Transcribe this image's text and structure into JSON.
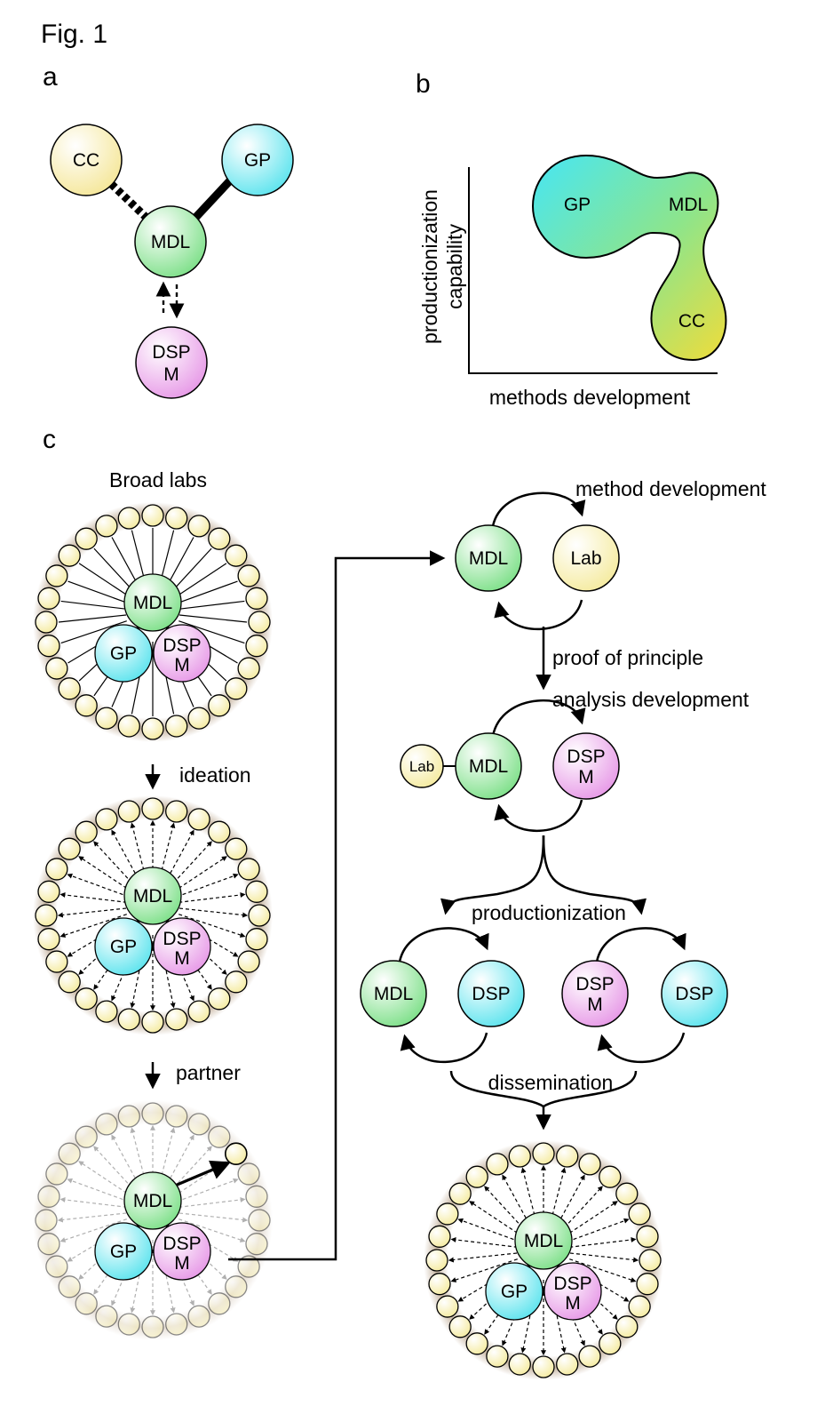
{
  "figure": {
    "title": "Fig. 1"
  },
  "panels": {
    "a": {
      "label": "a",
      "nodes": {
        "cc": "CC",
        "gp": "GP",
        "mdl": "MDL",
        "dsp_line1": "DSP",
        "dsp_line2": "M"
      }
    },
    "b": {
      "label": "b",
      "ylabel_line1": "productionization",
      "ylabel_line2": "capability",
      "xlabel": "methods development",
      "blob_labels": {
        "gp": "GP",
        "mdl": "MDL",
        "cc": "CC"
      }
    },
    "c": {
      "label": "c",
      "broad_labs": "Broad labs",
      "steps": {
        "ideation": "ideation",
        "partner": "partner"
      },
      "core_nodes": {
        "mdl": "MDL",
        "gp": "GP",
        "dsp_line1": "DSP",
        "dsp_line2": "M"
      },
      "flow": {
        "method_development": "method development",
        "proof_of_principle": "proof of principle",
        "analysis_development": "analysis development",
        "productionization": "productionization",
        "dissemination": "dissemination",
        "nodes": {
          "mdl": "MDL",
          "lab": "Lab",
          "dsp": "DSP",
          "dspm_line1": "DSP",
          "dspm_line2": "M"
        }
      }
    }
  },
  "colors": {
    "mdl": "#7fe08a",
    "gp": "#5fe4ee",
    "dsp": "#e79ae7",
    "cc": "#f5e79a",
    "lab": "#f5eba0",
    "ring": "#c9b8a4"
  }
}
